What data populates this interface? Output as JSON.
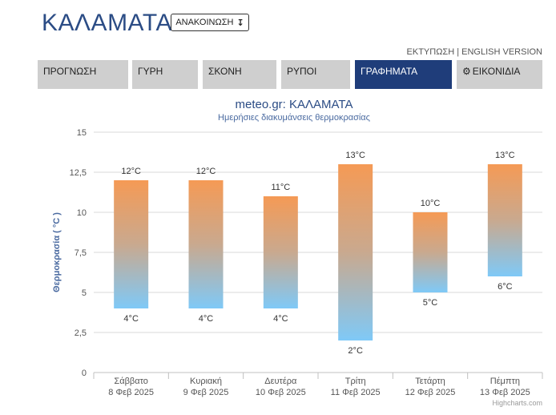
{
  "header": {
    "city": "ΚΑΛΑΜΑΤΑ",
    "announce_label": "ΑΝΑΚΟΙΝΩΣΗ",
    "announce_arrow": "↧",
    "print_label": "ΕΚΤΥΠΩΣΗ",
    "separator": "|",
    "english_label": "ENGLISH VERSION"
  },
  "tabs": [
    {
      "label": "ΠΡΟΓΝΩΣΗ"
    },
    {
      "label": "ΓΥΡΗ"
    },
    {
      "label": "ΣΚΟΝΗ"
    },
    {
      "label": "ΡΥΠΟΙ"
    },
    {
      "label": "ΓΡΑΦΗΜΑΤΑ",
      "active": true
    },
    {
      "label": "ΕΙΚΟΝΙΔΙΑ",
      "icon": "gear-icon"
    }
  ],
  "chart_data": {
    "type": "bar",
    "subtype": "columnrange",
    "title": "meteo.gr: ΚΑΛΑΜΑΤΑ",
    "subtitle": "Ημερήσιες διακυμάνσεις θερμοκρασίας",
    "ylabel": "Θερμοκρασία ( °C )",
    "xlabel": "",
    "ylim": [
      0,
      15
    ],
    "yticks": [
      0,
      2.5,
      5,
      7.5,
      10,
      12.5,
      15
    ],
    "ytick_labels": [
      "0",
      "2,5",
      "5",
      "7,5",
      "10",
      "12,5",
      "15"
    ],
    "grid": true,
    "categories": [
      {
        "day": "Σάββατο",
        "date": "8 Φεβ 2025"
      },
      {
        "day": "Κυριακή",
        "date": "9 Φεβ 2025"
      },
      {
        "day": "Δευτέρα",
        "date": "10 Φεβ 2025"
      },
      {
        "day": "Τρίτη",
        "date": "11 Φεβ 2025"
      },
      {
        "day": "Τετάρτη",
        "date": "12 Φεβ 2025"
      },
      {
        "day": "Πέμπτη",
        "date": "13 Φεβ 2025"
      }
    ],
    "low": [
      4,
      4,
      4,
      2,
      5,
      6
    ],
    "high": [
      12,
      12,
      11,
      13,
      10,
      13
    ],
    "low_labels": [
      "4°C",
      "4°C",
      "4°C",
      "2°C",
      "5°C",
      "6°C"
    ],
    "high_labels": [
      "12°C",
      "12°C",
      "11°C",
      "13°C",
      "10°C",
      "13°C"
    ],
    "colors": {
      "warm": "#f59a55",
      "cold": "#7fc9f7",
      "title": "#2b4c85",
      "grid": "#d8d8d8"
    }
  },
  "footer": {
    "credit": "Highcharts.com"
  }
}
